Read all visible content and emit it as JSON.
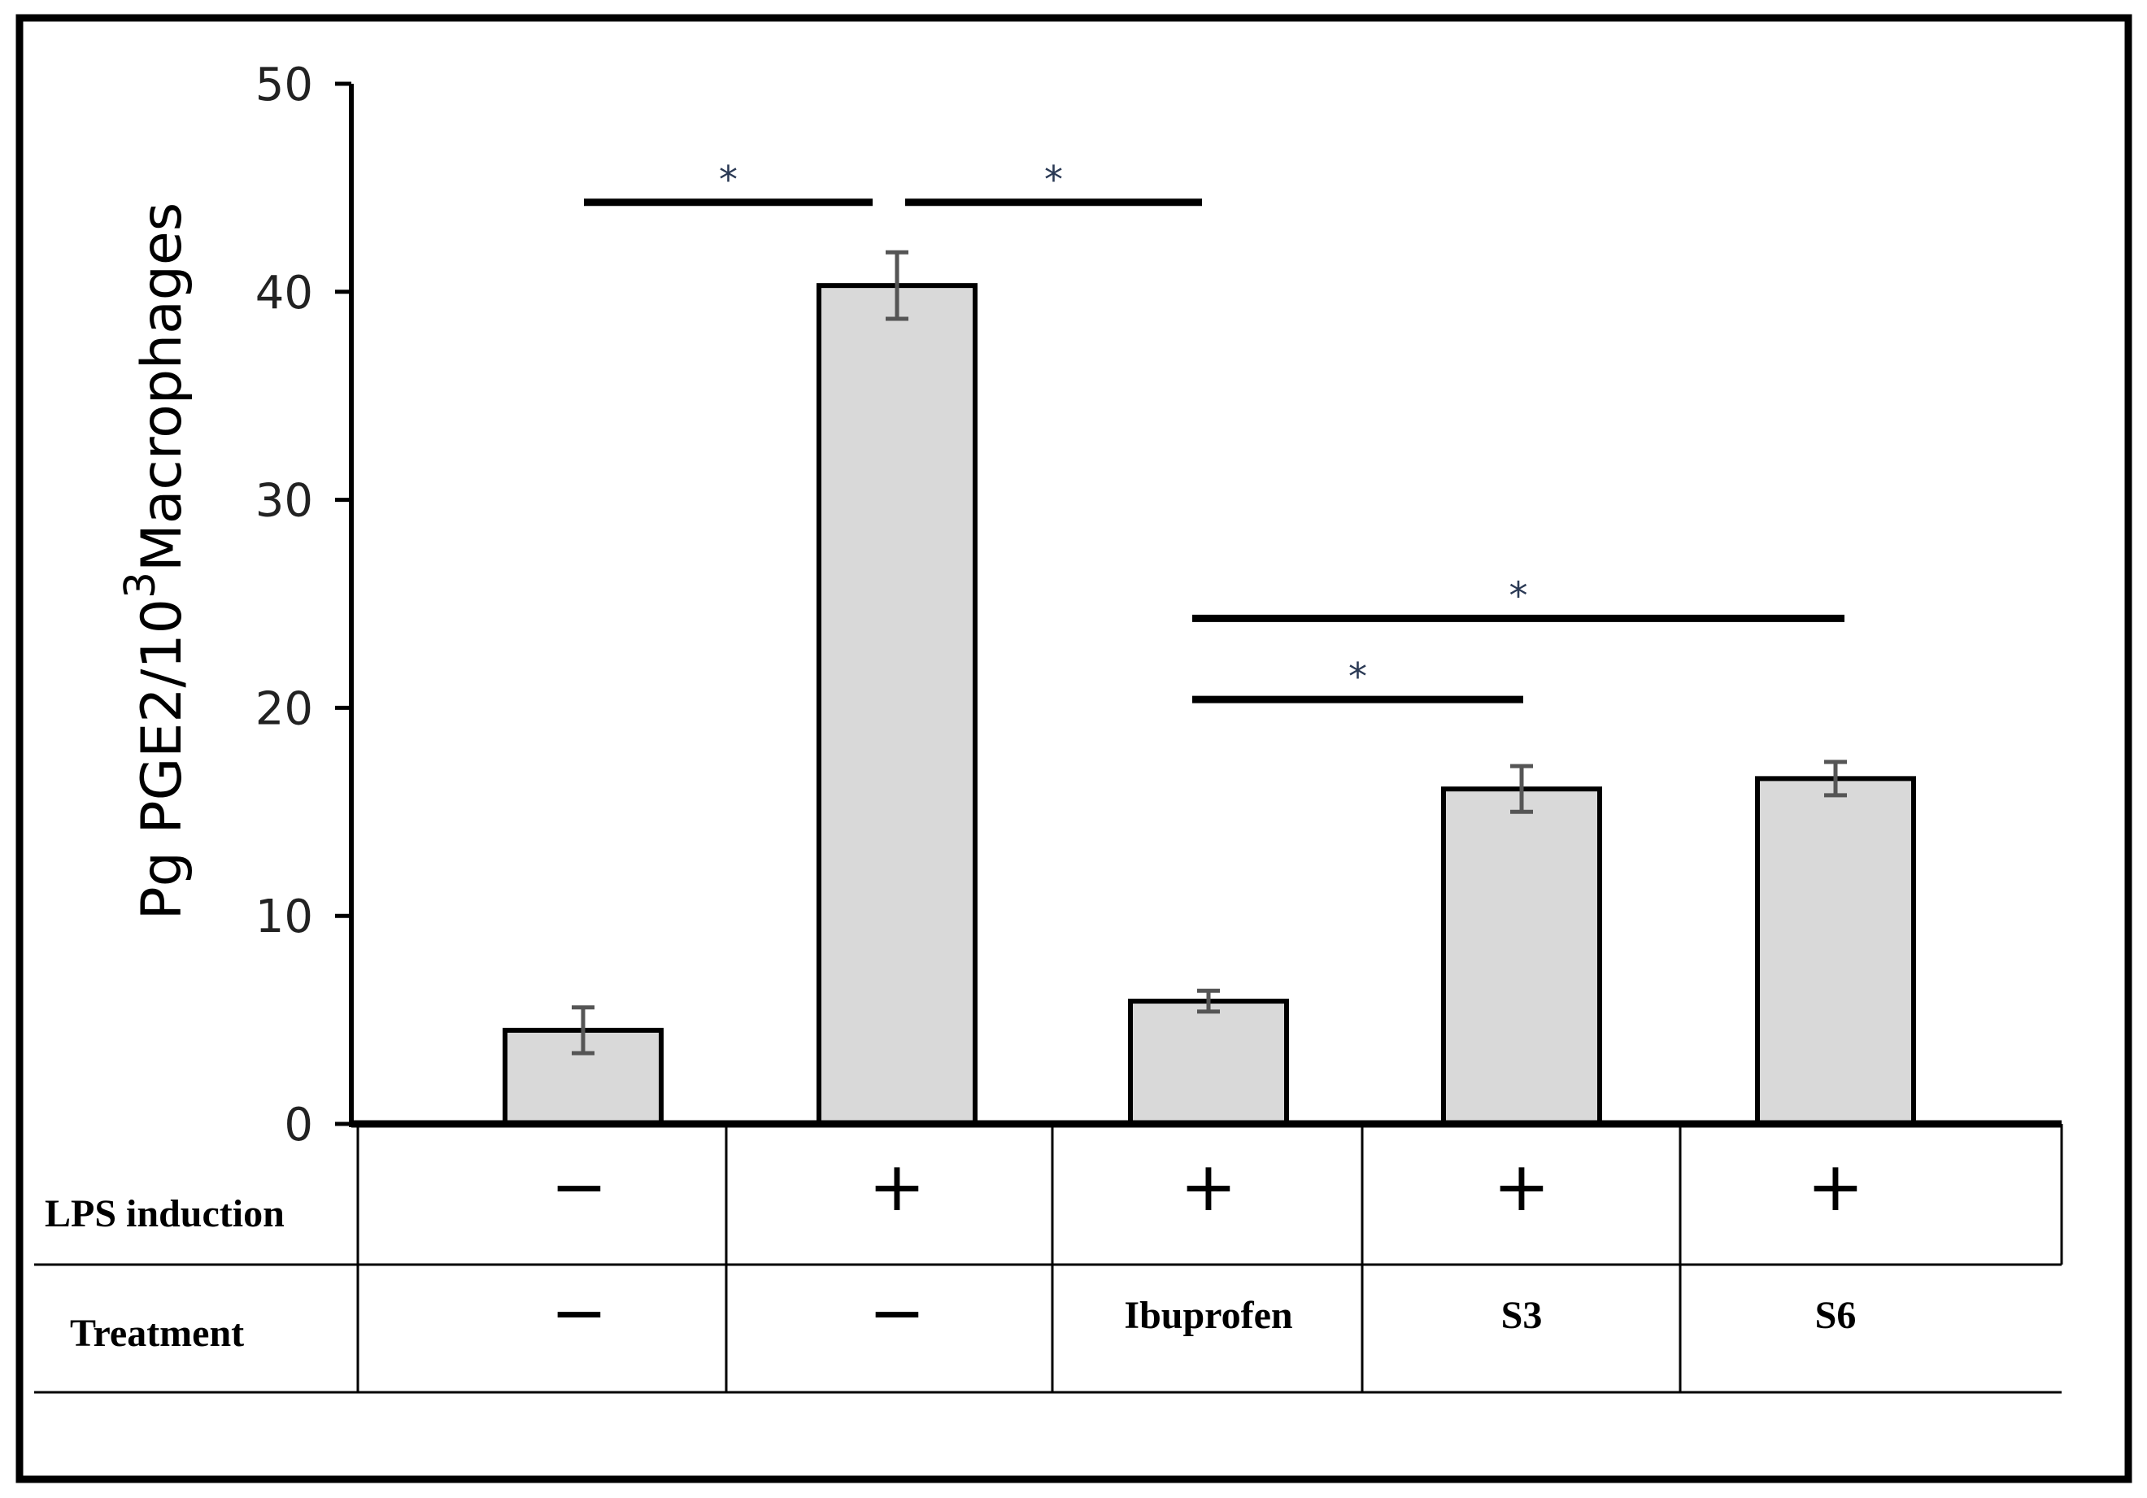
{
  "chart_data": {
    "type": "bar",
    "ylabel_main": "Pg PGE2/10",
    "ylabel_sup": "3",
    "ylabel_tail": "Macrophages",
    "ylim": [
      0,
      50
    ],
    "yticks": [
      0,
      10,
      20,
      30,
      40,
      50
    ],
    "grid": false,
    "categories": [
      "LPS− / −",
      "LPS+ / −",
      "LPS+ / Ibuprofen",
      "LPS+ / S3",
      "LPS+ / S6"
    ],
    "values": [
      4.5,
      40.3,
      5.9,
      16.1,
      16.6
    ],
    "errors": [
      1.1,
      1.6,
      0.5,
      1.1,
      0.8
    ],
    "bar_color": "#d9d9d9",
    "significance": [
      {
        "label": "*",
        "from": 0,
        "to": 1,
        "y": 44.3
      },
      {
        "label": "*",
        "from": 1,
        "to": 2,
        "y": 44.3
      },
      {
        "label": "*",
        "from": 2,
        "to": 4,
        "y": 24.3
      },
      {
        "label": "*",
        "from": 2,
        "to": 3,
        "y": 20.4
      }
    ],
    "table": {
      "rows": [
        {
          "label": "LPS induction",
          "cells": [
            "−",
            "+",
            "+",
            "+",
            "+"
          ]
        },
        {
          "label": "Treatment",
          "cells": [
            "−",
            "−",
            "Ibuprofen",
            "S3",
            "S6"
          ]
        }
      ]
    }
  }
}
